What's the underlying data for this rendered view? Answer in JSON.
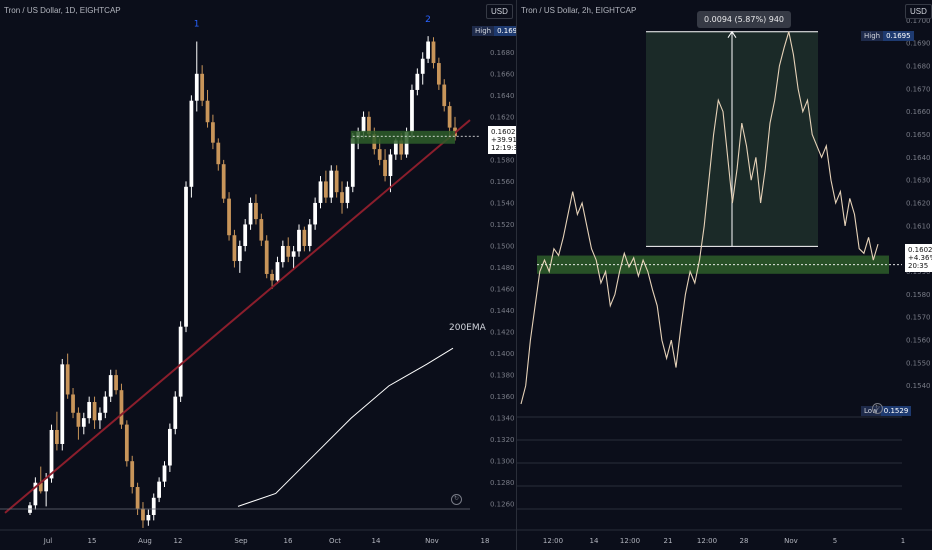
{
  "chart_data": [
    {
      "type": "candlestick",
      "title": "Tron / US Dollar, 1D, EIGHTCAP",
      "unit_button": "USD",
      "y_ticks": [
        "0.1700",
        "0.1680",
        "0.1660",
        "0.1640",
        "0.1620",
        "0.1600",
        "0.1580",
        "0.1560",
        "0.1540",
        "0.1520",
        "0.1500",
        "0.1480",
        "0.1460",
        "0.1440",
        "0.1420",
        "0.1400",
        "0.1380",
        "0.1360",
        "0.1340",
        "0.1320",
        "0.1300",
        "0.1280",
        "0.1260"
      ],
      "x_ticks": [
        "Jul",
        "15",
        "Aug",
        "12",
        "Sep",
        "16",
        "Oct",
        "14",
        "Nov",
        "18"
      ],
      "ylim": [
        0.125,
        0.171
      ],
      "high_label": "High",
      "high_value": "0.1695",
      "last_price": "0.1602",
      "last_change": "+39.91%",
      "countdown": "12:19:34",
      "wave_labels": [
        "1",
        "2"
      ],
      "indicator_label": "200EMA",
      "ohlc": [
        [
          0.1252,
          0.1262,
          0.125,
          0.1259
        ],
        [
          0.1259,
          0.1285,
          0.1255,
          0.128
        ],
        [
          0.128,
          0.1295,
          0.127,
          0.1272
        ],
        [
          0.1272,
          0.1289,
          0.1258,
          0.1284
        ],
        [
          0.1284,
          0.1334,
          0.128,
          0.1329
        ],
        [
          0.1329,
          0.1346,
          0.131,
          0.1316
        ],
        [
          0.1316,
          0.1395,
          0.131,
          0.139
        ],
        [
          0.139,
          0.14,
          0.1358,
          0.1362
        ],
        [
          0.1362,
          0.1368,
          0.134,
          0.1345
        ],
        [
          0.1345,
          0.135,
          0.132,
          0.1332
        ],
        [
          0.1332,
          0.1345,
          0.1325,
          0.134
        ],
        [
          0.134,
          0.136,
          0.1335,
          0.1355
        ],
        [
          0.1355,
          0.136,
          0.133,
          0.1338
        ],
        [
          0.1338,
          0.135,
          0.133,
          0.1345
        ],
        [
          0.1345,
          0.1365,
          0.134,
          0.136
        ],
        [
          0.136,
          0.1385,
          0.1355,
          0.138
        ],
        [
          0.138,
          0.1385,
          0.1362,
          0.1366
        ],
        [
          0.1366,
          0.1372,
          0.133,
          0.1334
        ],
        [
          0.1334,
          0.1338,
          0.1295,
          0.13
        ],
        [
          0.13,
          0.1305,
          0.127,
          0.1276
        ],
        [
          0.1276,
          0.128,
          0.125,
          0.1256
        ],
        [
          0.1256,
          0.1262,
          0.1238,
          0.1245
        ],
        [
          0.1245,
          0.1255,
          0.124,
          0.125
        ],
        [
          0.125,
          0.127,
          0.1245,
          0.1266
        ],
        [
          0.1266,
          0.1285,
          0.1262,
          0.1281
        ],
        [
          0.1281,
          0.13,
          0.1276,
          0.1296
        ],
        [
          0.1296,
          0.1335,
          0.129,
          0.133
        ],
        [
          0.133,
          0.1365,
          0.1325,
          0.136
        ],
        [
          0.136,
          0.143,
          0.1355,
          0.1425
        ],
        [
          0.1425,
          0.156,
          0.142,
          0.1555
        ],
        [
          0.1555,
          0.164,
          0.1545,
          0.1635
        ],
        [
          0.1635,
          0.169,
          0.1625,
          0.166
        ],
        [
          0.166,
          0.1668,
          0.163,
          0.1635
        ],
        [
          0.1635,
          0.1645,
          0.161,
          0.1615
        ],
        [
          0.1615,
          0.1622,
          0.159,
          0.1596
        ],
        [
          0.1596,
          0.16,
          0.157,
          0.1576
        ],
        [
          0.1576,
          0.158,
          0.154,
          0.1544
        ],
        [
          0.1544,
          0.155,
          0.1505,
          0.151
        ],
        [
          0.151,
          0.1515,
          0.148,
          0.1486
        ],
        [
          0.1486,
          0.1505,
          0.1475,
          0.15
        ],
        [
          0.15,
          0.1525,
          0.1495,
          0.152
        ],
        [
          0.152,
          0.1545,
          0.1515,
          0.154
        ],
        [
          0.154,
          0.1548,
          0.152,
          0.1525
        ],
        [
          0.1525,
          0.153,
          0.15,
          0.1505
        ],
        [
          0.1505,
          0.151,
          0.147,
          0.1474
        ],
        [
          0.1474,
          0.1478,
          0.146,
          0.1468
        ],
        [
          0.1468,
          0.149,
          0.1465,
          0.1485
        ],
        [
          0.1485,
          0.1505,
          0.148,
          0.15
        ],
        [
          0.15,
          0.1508,
          0.1485,
          0.149
        ],
        [
          0.149,
          0.15,
          0.1478,
          0.1495
        ],
        [
          0.1495,
          0.152,
          0.149,
          0.1515
        ],
        [
          0.1515,
          0.1518,
          0.1495,
          0.15
        ],
        [
          0.15,
          0.1525,
          0.1495,
          0.152
        ],
        [
          0.152,
          0.1545,
          0.1515,
          0.154
        ],
        [
          0.154,
          0.1565,
          0.1535,
          0.156
        ],
        [
          0.156,
          0.157,
          0.154,
          0.1545
        ],
        [
          0.1545,
          0.1575,
          0.154,
          0.157
        ],
        [
          0.157,
          0.1575,
          0.1545,
          0.155
        ],
        [
          0.155,
          0.156,
          0.153,
          0.154
        ],
        [
          0.154,
          0.156,
          0.1535,
          0.1555
        ],
        [
          0.1555,
          0.1605,
          0.155,
          0.16
        ],
        [
          0.16,
          0.161,
          0.159,
          0.1606
        ],
        [
          0.1606,
          0.1625,
          0.16,
          0.162
        ],
        [
          0.162,
          0.1625,
          0.16,
          0.1604
        ],
        [
          0.1604,
          0.161,
          0.1585,
          0.159
        ],
        [
          0.159,
          0.16,
          0.1575,
          0.158
        ],
        [
          0.158,
          0.159,
          0.156,
          0.1565
        ],
        [
          0.1565,
          0.159,
          0.155,
          0.1585
        ],
        [
          0.1585,
          0.16,
          0.158,
          0.1598
        ],
        [
          0.1598,
          0.1605,
          0.158,
          0.1585
        ],
        [
          0.1585,
          0.161,
          0.1582,
          0.1606
        ],
        [
          0.1606,
          0.165,
          0.16,
          0.1645
        ],
        [
          0.1645,
          0.1665,
          0.164,
          0.166
        ],
        [
          0.166,
          0.168,
          0.165,
          0.1674
        ],
        [
          0.1674,
          0.1695,
          0.167,
          0.169
        ],
        [
          0.169,
          0.1694,
          0.1665,
          0.167
        ],
        [
          0.167,
          0.1675,
          0.1645,
          0.165
        ],
        [
          0.165,
          0.1655,
          0.1625,
          0.163
        ],
        [
          0.163,
          0.1634,
          0.16,
          0.161
        ],
        [
          0.161,
          0.162,
          0.1598,
          0.1602
        ]
      ],
      "ema": [
        [
          0.1258,
          0
        ],
        [
          0.127,
          10
        ],
        [
          0.1305,
          20
        ],
        [
          0.134,
          30
        ],
        [
          0.137,
          40
        ],
        [
          0.139,
          50
        ],
        [
          0.1405,
          57
        ]
      ]
    },
    {
      "type": "line",
      "title": "Tron / US Dollar, 2h, EIGHTCAP",
      "unit_button": "USD",
      "y_ticks": [
        "0.1700",
        "0.1690",
        "0.1680",
        "0.1670",
        "0.1660",
        "0.1650",
        "0.1640",
        "0.1630",
        "0.1620",
        "0.1610",
        "0.1600",
        "0.1590",
        "0.1580",
        "0.1570",
        "0.1560",
        "0.1550",
        "0.1540"
      ],
      "x_ticks": [
        "12:00",
        "14",
        "12:00",
        "21",
        "12:00",
        "28",
        "Nov",
        "5",
        "1"
      ],
      "ylim": [
        0.1525,
        0.1701
      ],
      "high_label": "High",
      "high_value": "0.1695",
      "low_label": "Low",
      "low_value": "0.1529",
      "last_price": "0.1602",
      "last_change": "+4.36%",
      "countdown": "20:35",
      "measure_label": "0.0094 (5.87%) 940",
      "prices": [
        0.1532,
        0.154,
        0.156,
        0.1575,
        0.159,
        0.1595,
        0.159,
        0.16,
        0.1597,
        0.1605,
        0.1615,
        0.1625,
        0.1615,
        0.162,
        0.161,
        0.16,
        0.1595,
        0.1585,
        0.159,
        0.1575,
        0.158,
        0.159,
        0.1598,
        0.1592,
        0.1596,
        0.1588,
        0.1595,
        0.159,
        0.1582,
        0.1575,
        0.156,
        0.1552,
        0.156,
        0.1548,
        0.1565,
        0.158,
        0.159,
        0.1585,
        0.1595,
        0.161,
        0.163,
        0.165,
        0.1665,
        0.166,
        0.164,
        0.162,
        0.1635,
        0.1655,
        0.1645,
        0.163,
        0.164,
        0.162,
        0.1635,
        0.1655,
        0.1665,
        0.168,
        0.1688,
        0.1695,
        0.1685,
        0.167,
        0.166,
        0.1665,
        0.165,
        0.1645,
        0.164,
        0.1645,
        0.163,
        0.162,
        0.1625,
        0.161,
        0.1622,
        0.1615,
        0.16,
        0.1598,
        0.1605,
        0.1595,
        0.1602
      ]
    }
  ]
}
